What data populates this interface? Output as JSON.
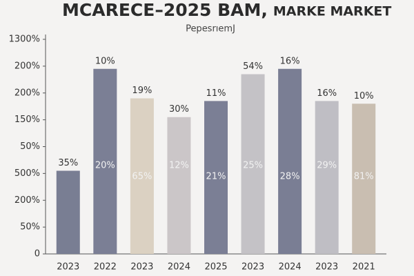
{
  "chart_data": {
    "type": "bar",
    "title": "MCARECE–2025 BAM,",
    "title_suffix": "MARKE MARKET",
    "subtitle": "PepesrıemJ",
    "categories": [
      "2023",
      "2022",
      "2023",
      "2024",
      "2025",
      "2023",
      "2024",
      "2023",
      "2021"
    ],
    "values": [
      3.1,
      6.9,
      5.8,
      5.1,
      5.7,
      6.7,
      6.9,
      5.7,
      5.6
    ],
    "top_labels": [
      "35%",
      "10%",
      "19%",
      "30%",
      "11%",
      "54%",
      "16%",
      "16%",
      "10%"
    ],
    "inner_labels": [
      null,
      "20%",
      "65%",
      "12%",
      "21%",
      "25%",
      "28%",
      "29%",
      "81%"
    ],
    "colors": [
      "#797e93",
      "#7b7f95",
      "#dbd1c2",
      "#cbc6c8",
      "#7b7f95",
      "#c4c2c6",
      "#7a7e94",
      "#bfbec4",
      "#c9beb1"
    ],
    "ylim": [
      0,
      8
    ],
    "yticks": [
      0,
      {
        "value": 1,
        "label": "50%"
      },
      {
        "value": 2,
        "label": "200%"
      },
      {
        "value": 3,
        "label": "500%"
      },
      {
        "value": 4,
        "label": "50%"
      },
      {
        "value": 5,
        "label": "150%"
      },
      {
        "value": 6,
        "label": "200%"
      },
      {
        "value": 7,
        "label": "200%"
      },
      {
        "value": 8,
        "label": "1300%"
      }
    ],
    "grid": false
  }
}
